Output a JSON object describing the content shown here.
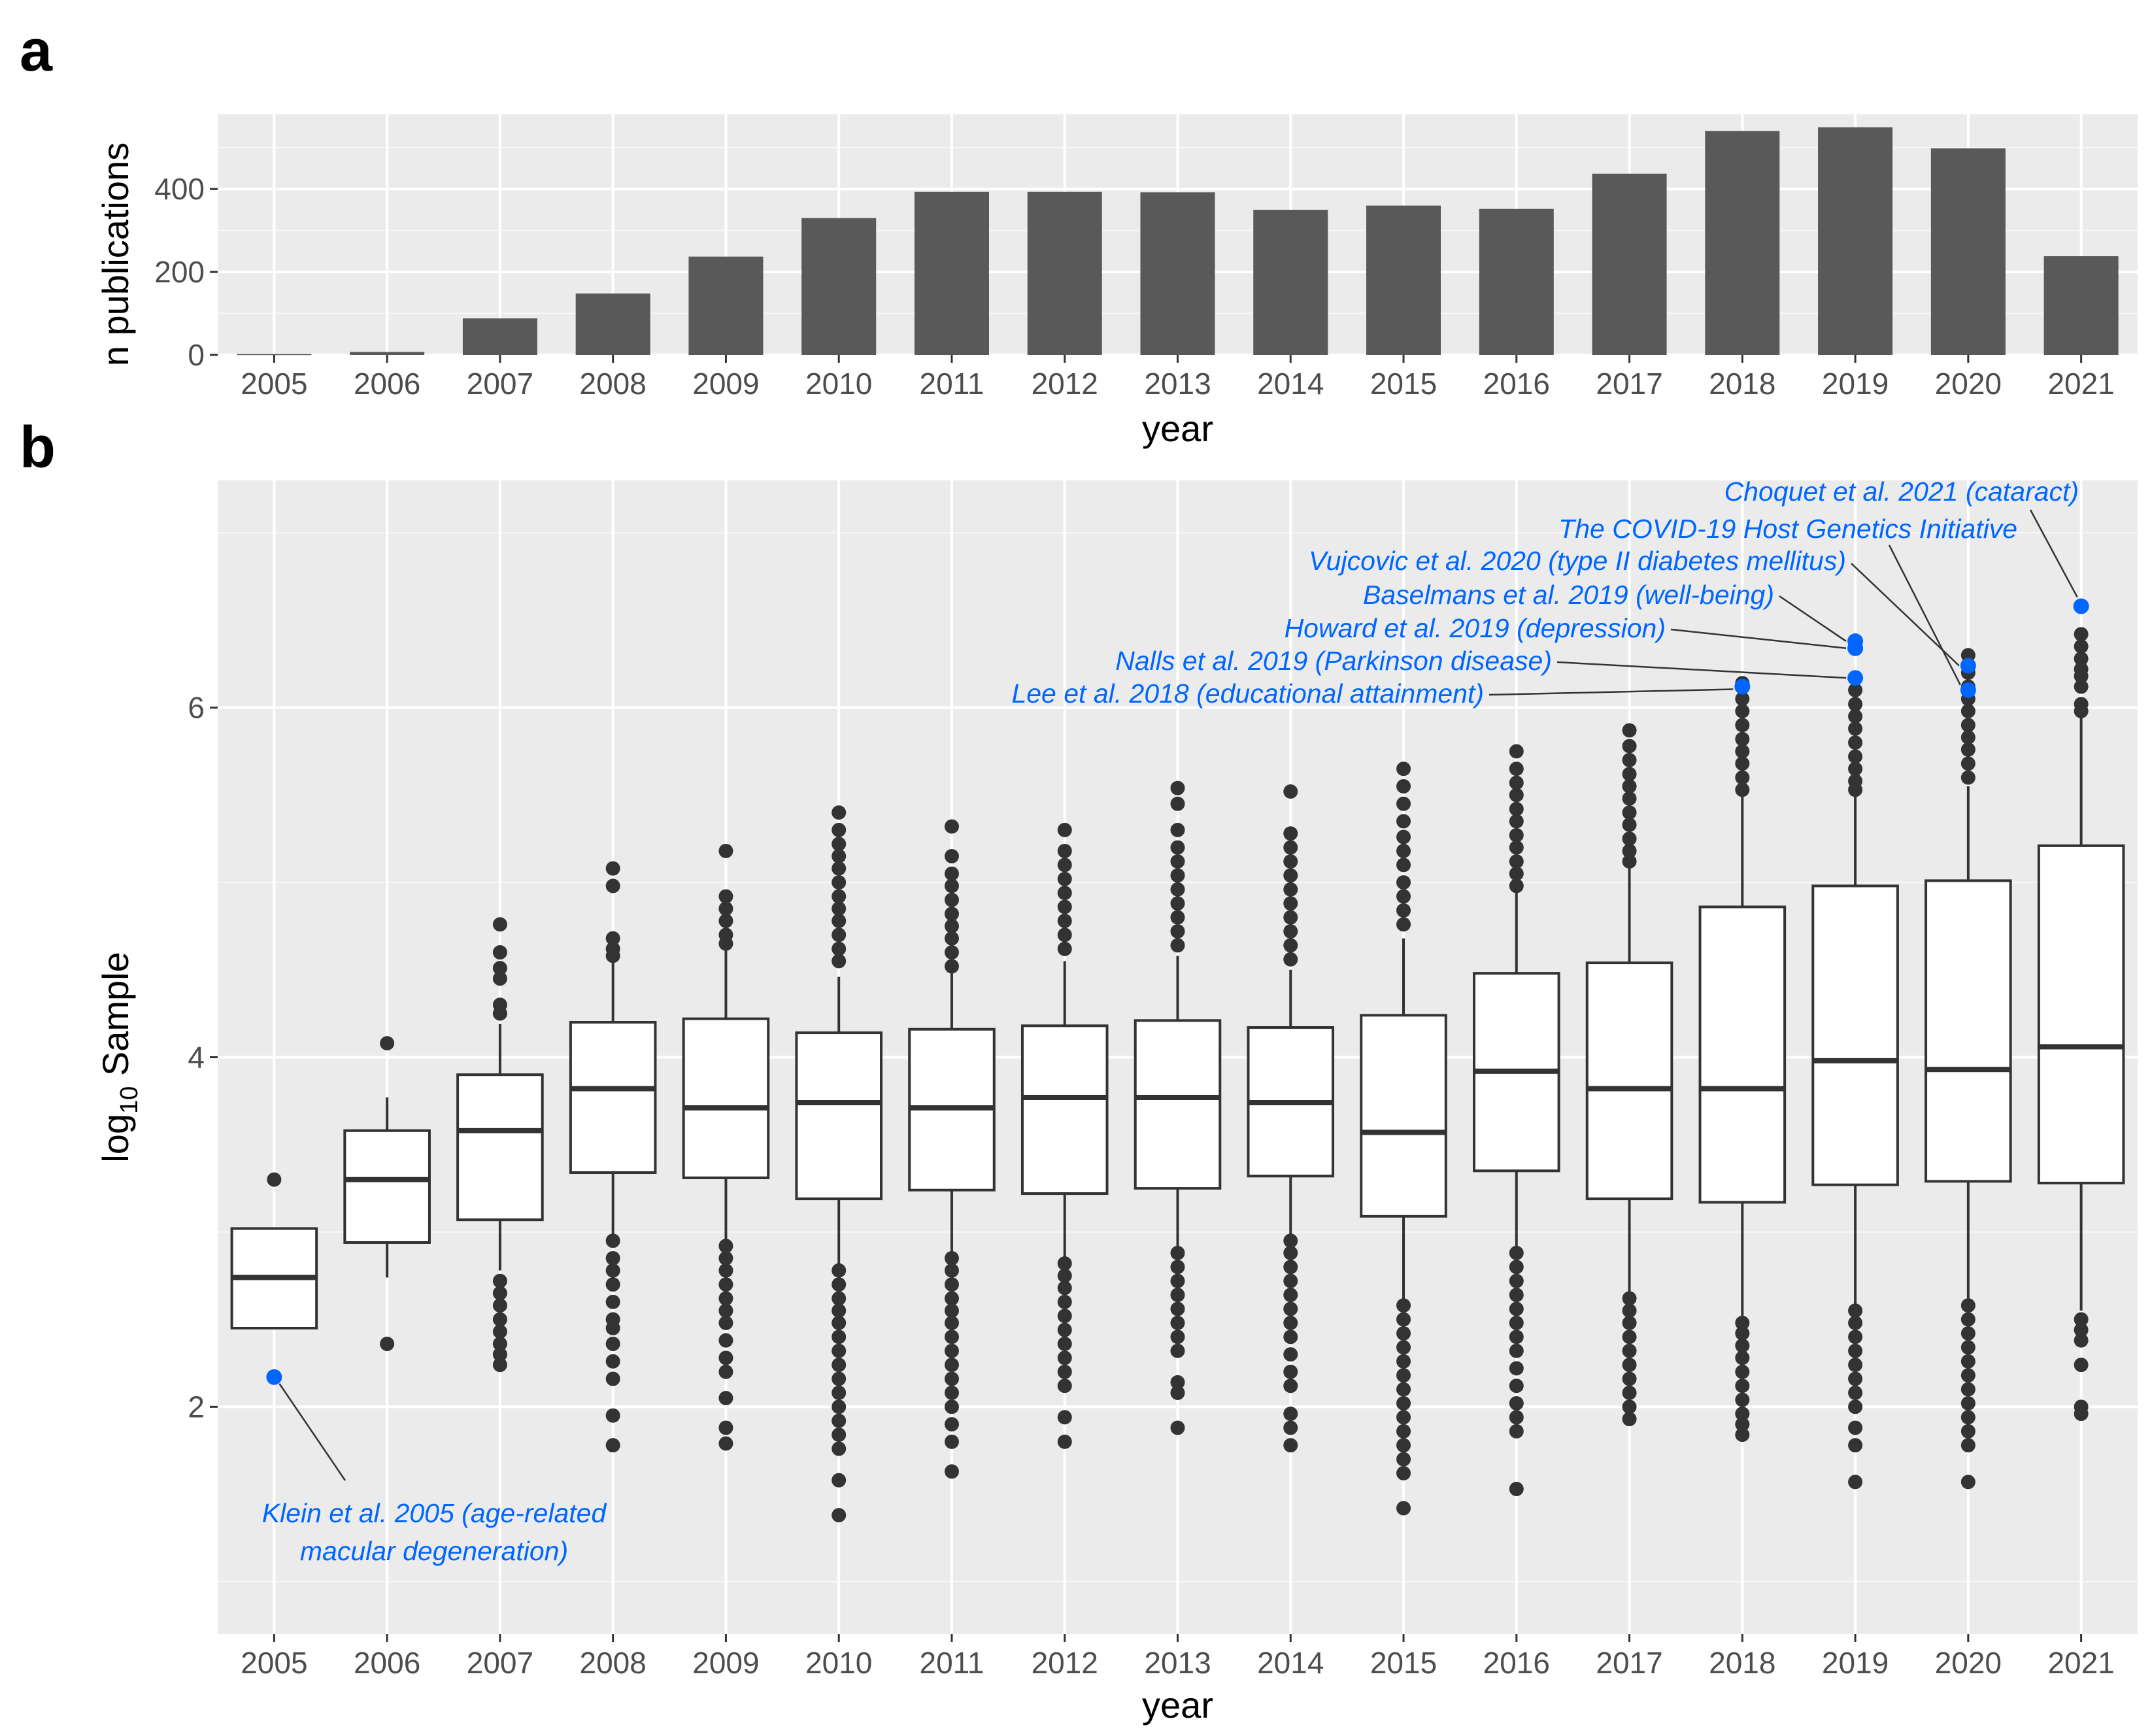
{
  "chart_data": [
    {
      "panel": "a",
      "type": "bar",
      "xlabel": "year",
      "ylabel": "n publications",
      "ylim": [
        0,
        580
      ],
      "yticks": [
        0,
        200,
        400
      ],
      "grid": true,
      "categories": [
        "2005",
        "2006",
        "2007",
        "2008",
        "2009",
        "2010",
        "2011",
        "2012",
        "2013",
        "2014",
        "2015",
        "2016",
        "2017",
        "2018",
        "2019",
        "2020",
        "2021"
      ],
      "values": [
        2,
        7,
        88,
        148,
        237,
        330,
        393,
        393,
        392,
        350,
        360,
        352,
        437,
        540,
        549,
        498,
        238
      ],
      "colors": {
        "bar": "#595959",
        "panel": "#ebebeb"
      }
    },
    {
      "panel": "b",
      "type": "box",
      "xlabel": "year",
      "ylabel_main": "log",
      "ylabel_sub": "10",
      "ylabel_rest": " Sample",
      "ylim": [
        0.7,
        7.3
      ],
      "yticks": [
        2,
        4,
        6
      ],
      "grid": true,
      "categories": [
        "2005",
        "2006",
        "2007",
        "2008",
        "2009",
        "2010",
        "2011",
        "2012",
        "2013",
        "2014",
        "2015",
        "2016",
        "2017",
        "2018",
        "2019",
        "2020",
        "2021"
      ],
      "boxes": [
        {
          "q1": 2.45,
          "median": 2.74,
          "q3": 3.02,
          "lo": 2.45,
          "hi": 3.02,
          "outliers": [
            3.3
          ]
        },
        {
          "q1": 2.94,
          "median": 3.3,
          "q3": 3.58,
          "lo": 2.74,
          "hi": 3.77,
          "outliers": [
            4.08,
            2.36
          ]
        },
        {
          "q1": 3.07,
          "median": 3.58,
          "q3": 3.9,
          "lo": 2.78,
          "hi": 4.19,
          "outliers": [
            4.76,
            4.6,
            4.51,
            4.45,
            4.3,
            4.25,
            2.72,
            2.65,
            2.58,
            2.5,
            2.43,
            2.36,
            2.3,
            2.24
          ]
        },
        {
          "q1": 3.34,
          "median": 3.82,
          "q3": 4.2,
          "lo": 2.98,
          "hi": 4.55,
          "outliers": [
            5.08,
            4.98,
            4.68,
            4.62,
            4.58,
            2.95,
            2.85,
            2.78,
            2.7,
            2.6,
            2.5,
            2.45,
            2.36,
            2.26,
            2.16,
            1.95,
            1.78
          ]
        },
        {
          "q1": 3.31,
          "median": 3.71,
          "q3": 4.22,
          "lo": 2.95,
          "hi": 4.63,
          "outliers": [
            5.18,
            4.92,
            4.85,
            4.78,
            4.7,
            4.65,
            2.92,
            2.85,
            2.78,
            2.7,
            2.62,
            2.55,
            2.48,
            2.38,
            2.28,
            2.2,
            2.05,
            1.88,
            1.79
          ]
        },
        {
          "q1": 3.19,
          "median": 3.74,
          "q3": 4.14,
          "lo": 2.8,
          "hi": 4.46,
          "outliers": [
            5.4,
            5.3,
            5.22,
            5.15,
            5.08,
            5.0,
            4.92,
            4.85,
            4.78,
            4.7,
            4.62,
            4.55,
            2.78,
            2.7,
            2.62,
            2.55,
            2.48,
            2.4,
            2.32,
            2.24,
            2.16,
            2.08,
            2.0,
            1.92,
            1.84,
            1.76,
            1.58,
            1.38
          ]
        },
        {
          "q1": 3.24,
          "median": 3.71,
          "q3": 4.16,
          "lo": 2.88,
          "hi": 4.5,
          "outliers": [
            5.32,
            5.15,
            5.05,
            4.98,
            4.9,
            4.82,
            4.75,
            4.68,
            4.6,
            4.52,
            2.85,
            2.78,
            2.7,
            2.62,
            2.55,
            2.48,
            2.4,
            2.32,
            2.24,
            2.16,
            2.08,
            2.0,
            1.9,
            1.8,
            1.63
          ]
        },
        {
          "q1": 3.22,
          "median": 3.77,
          "q3": 4.18,
          "lo": 2.85,
          "hi": 4.55,
          "outliers": [
            5.3,
            5.18,
            5.1,
            5.02,
            4.94,
            4.86,
            4.78,
            4.7,
            4.62,
            2.82,
            2.75,
            2.68,
            2.6,
            2.52,
            2.44,
            2.36,
            2.28,
            2.2,
            2.12,
            1.94,
            1.8
          ]
        },
        {
          "q1": 3.25,
          "median": 3.77,
          "q3": 4.21,
          "lo": 2.88,
          "hi": 4.58,
          "outliers": [
            5.54,
            5.45,
            5.3,
            5.2,
            5.12,
            5.04,
            4.96,
            4.88,
            4.8,
            4.72,
            4.64,
            2.88,
            2.8,
            2.72,
            2.64,
            2.56,
            2.48,
            2.4,
            2.32,
            2.14,
            2.08,
            1.88
          ]
        },
        {
          "q1": 3.32,
          "median": 3.74,
          "q3": 4.17,
          "lo": 2.98,
          "hi": 4.5,
          "outliers": [
            5.52,
            5.28,
            5.2,
            5.12,
            5.04,
            4.96,
            4.88,
            4.8,
            4.72,
            4.64,
            4.56,
            2.95,
            2.88,
            2.8,
            2.72,
            2.64,
            2.56,
            2.48,
            2.4,
            2.3,
            2.2,
            2.12,
            1.96,
            1.88,
            1.78
          ]
        },
        {
          "q1": 3.09,
          "median": 3.57,
          "q3": 4.24,
          "lo": 2.62,
          "hi": 4.68,
          "outliers": [
            5.65,
            5.55,
            5.45,
            5.35,
            5.26,
            5.18,
            5.1,
            5.0,
            4.92,
            4.84,
            4.76,
            2.58,
            2.5,
            2.42,
            2.34,
            2.26,
            2.18,
            2.1,
            2.02,
            1.94,
            1.86,
            1.78,
            1.7,
            1.62,
            1.42
          ]
        },
        {
          "q1": 3.35,
          "median": 3.92,
          "q3": 4.48,
          "lo": 2.9,
          "hi": 4.95,
          "outliers": [
            5.75,
            5.65,
            5.57,
            5.5,
            5.42,
            5.35,
            5.27,
            5.2,
            5.12,
            5.05,
            4.98,
            2.88,
            2.8,
            2.72,
            2.64,
            2.56,
            2.48,
            2.4,
            2.32,
            2.22,
            2.12,
            2.02,
            1.94,
            1.86,
            1.53
          ]
        },
        {
          "q1": 3.19,
          "median": 3.82,
          "q3": 4.54,
          "lo": 2.65,
          "hi": 5.08,
          "outliers": [
            5.87,
            5.78,
            5.7,
            5.62,
            5.55,
            5.48,
            5.4,
            5.33,
            5.25,
            5.18,
            5.12,
            2.62,
            2.55,
            2.48,
            2.4,
            2.32,
            2.24,
            2.16,
            2.08,
            2.0,
            1.93
          ]
        },
        {
          "q1": 3.17,
          "median": 3.82,
          "q3": 4.86,
          "lo": 2.48,
          "hi": 5.5,
          "outliers": [
            6.14,
            6.05,
            5.98,
            5.9,
            5.82,
            5.75,
            5.68,
            5.6,
            5.53,
            2.48,
            2.42,
            2.35,
            2.28,
            2.2,
            2.12,
            2.04,
            1.96,
            1.9,
            1.84
          ]
        },
        {
          "q1": 3.27,
          "median": 3.98,
          "q3": 4.98,
          "lo": 2.58,
          "hi": 5.5,
          "outliers": [
            6.1,
            6.02,
            5.95,
            5.88,
            5.8,
            5.72,
            5.65,
            5.58,
            5.53,
            2.55,
            2.48,
            2.4,
            2.32,
            2.24,
            2.16,
            2.08,
            2.0,
            1.88,
            1.78,
            1.57
          ]
        },
        {
          "q1": 3.29,
          "median": 3.93,
          "q3": 5.01,
          "lo": 2.6,
          "hi": 5.55,
          "outliers": [
            6.3,
            6.2,
            6.12,
            6.05,
            5.98,
            5.9,
            5.83,
            5.76,
            5.68,
            5.6,
            2.58,
            2.5,
            2.42,
            2.34,
            2.26,
            2.18,
            2.1,
            2.02,
            1.94,
            1.86,
            1.78,
            1.57
          ]
        },
        {
          "q1": 3.28,
          "median": 4.06,
          "q3": 5.21,
          "lo": 2.55,
          "hi": 5.98,
          "outliers": [
            6.42,
            6.35,
            6.28,
            6.22,
            6.18,
            6.12,
            6.02,
            5.98,
            2.5,
            2.44,
            2.38,
            2.24,
            2.0,
            1.96
          ]
        }
      ],
      "highlighted": [
        {
          "year": "2005",
          "value": 2.17,
          "label": "Klein et al. 2005 (age-related",
          "label2": "macular degeneration)"
        },
        {
          "year": "2018",
          "value": 6.12,
          "label": "Lee et al. 2018 (educational attainment)"
        },
        {
          "year": "2019",
          "value": 6.17,
          "label": "Nalls et al. 2019 (Parkinson disease)"
        },
        {
          "year": "2019",
          "value": 6.34,
          "label": "Howard et al. 2019 (depression)"
        },
        {
          "year": "2019",
          "value": 6.38,
          "label": "Baselmans et al. 2019 (well-being)"
        },
        {
          "year": "2020",
          "value": 6.24,
          "label": "Vujcovic et al. 2020 (type II diabetes mellitus)"
        },
        {
          "year": "2020",
          "value": 6.1,
          "label": "The COVID-19 Host Genetics Initiative"
        },
        {
          "year": "2021",
          "value": 6.58,
          "label": "Choquet et al. 2021 (cataract)"
        }
      ],
      "colors": {
        "highlight": "#0066ff",
        "outlier": "#333333",
        "panel": "#ebebeb"
      }
    }
  ]
}
